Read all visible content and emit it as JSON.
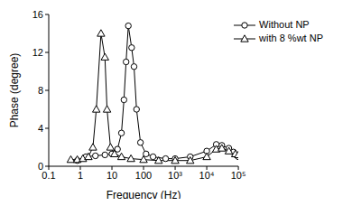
{
  "chart_data": {
    "type": "line",
    "x_label": "Frequency (Hz)",
    "y_label": "Phase (degree)",
    "log": "x",
    "grid": false,
    "legend": "top-right",
    "xlim": [
      0.1,
      100000
    ],
    "xticks": [
      0.1,
      1,
      10,
      100,
      {
        "value": 1000,
        "label": "10³"
      },
      {
        "value": 10000,
        "label": "10⁴"
      },
      {
        "value": 100000,
        "label": "10⁵"
      }
    ],
    "ylim": [
      0,
      16
    ],
    "yticks": [
      0,
      4,
      8,
      12,
      16
    ],
    "series": [
      {
        "name": "Without NP",
        "color": "#000000",
        "marker": "circle",
        "x": [
          0.8,
          1.5,
          3,
          6,
          10,
          15,
          20,
          24,
          28,
          33,
          42,
          50,
          60,
          80,
          120,
          200,
          500,
          1000,
          3000,
          10000,
          20000,
          30000,
          50000,
          70000,
          100000
        ],
        "values": [
          0.6,
          1.0,
          1.1,
          1.2,
          1.3,
          1.8,
          3.5,
          7.0,
          11.0,
          14.8,
          12.5,
          10.5,
          6.0,
          2.5,
          1.3,
          1.0,
          0.8,
          0.8,
          1.0,
          1.6,
          2.3,
          2.2,
          1.9,
          1.5,
          1.0
        ]
      },
      {
        "name": "with 8 %wt NP",
        "color": "#000000",
        "marker": "triangle",
        "x": [
          0.5,
          0.8,
          1.2,
          1.8,
          2.5,
          3.2,
          4.5,
          6,
          7,
          9,
          12,
          20,
          40,
          100,
          300,
          1000,
          3000,
          10000,
          20000,
          30000,
          50000,
          80000,
          100000
        ],
        "values": [
          0.7,
          0.7,
          0.8,
          1.0,
          2.0,
          6.0,
          14.0,
          11.5,
          6.0,
          2.0,
          1.3,
          1.0,
          0.8,
          0.7,
          0.6,
          0.6,
          0.6,
          1.0,
          1.8,
          1.9,
          1.6,
          1.3,
          1.2
        ]
      }
    ]
  }
}
